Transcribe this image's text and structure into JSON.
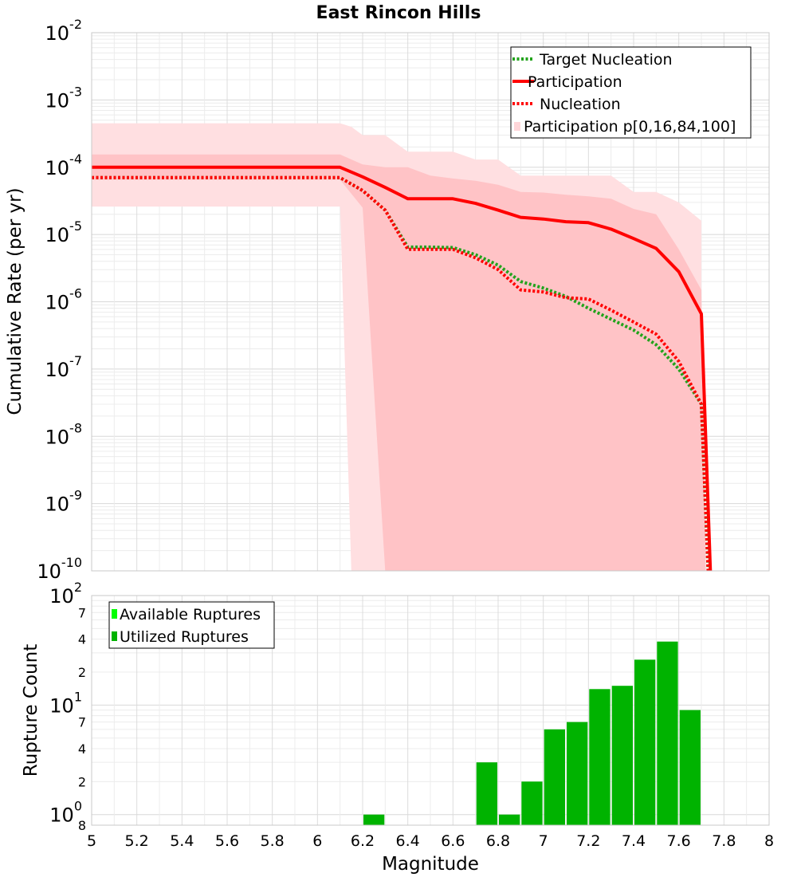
{
  "chart_data": [
    {
      "type": "line",
      "title": "East Rincon Hills",
      "xlabel": "",
      "ylabel": "Cumulative Rate (per yr)",
      "xlim": [
        5,
        8
      ],
      "ylim": [
        1e-10,
        0.01
      ],
      "yscale": "log",
      "grid": true,
      "legend_position": "top-right",
      "y_ticks": [
        {
          "base": "10",
          "exp": "-2"
        },
        {
          "base": "10",
          "exp": "-3"
        },
        {
          "base": "10",
          "exp": "-4"
        },
        {
          "base": "10",
          "exp": "-5"
        },
        {
          "base": "10",
          "exp": "-6"
        },
        {
          "base": "10",
          "exp": "-7"
        },
        {
          "base": "10",
          "exp": "-8"
        },
        {
          "base": "10",
          "exp": "-9"
        },
        {
          "base": "10",
          "exp": "-10"
        }
      ],
      "legend": [
        {
          "label": "Target Nucleation",
          "color": "#22a31c",
          "style": "dotted"
        },
        {
          "label": "Participation",
          "color": "#ff0000",
          "style": "solid"
        },
        {
          "label": "Nucleation",
          "color": "#ff0000",
          "style": "dotted"
        },
        {
          "label": "Participation p[0,16,84,100]",
          "color": "#ffd6d9",
          "style": "band"
        }
      ],
      "series": [
        {
          "name": "Target Nucleation",
          "color": "#22a31c",
          "x": [
            5,
            6.1,
            6.2,
            6.3,
            6.4,
            6.5,
            6.6,
            6.7,
            6.8,
            6.9,
            7.0,
            7.1,
            7.2,
            7.3,
            7.4,
            7.5,
            7.6,
            7.7,
            7.73
          ],
          "y": [
            7e-05,
            7e-05,
            4.5e-05,
            2.3e-05,
            6.5e-06,
            6.5e-06,
            6.4e-06,
            5e-06,
            3.5e-06,
            2e-06,
            1.6e-06,
            1.2e-06,
            8e-07,
            5.5e-07,
            3.8e-07,
            2.3e-07,
            1e-07,
            3e-08,
            1e-10
          ]
        },
        {
          "name": "Participation",
          "color": "#ff0000",
          "x": [
            5,
            6.1,
            6.2,
            6.3,
            6.4,
            6.5,
            6.6,
            6.7,
            6.8,
            6.9,
            7.0,
            7.1,
            7.2,
            7.3,
            7.4,
            7.5,
            7.6,
            7.7,
            7.74
          ],
          "y": [
            0.0001,
            0.0001,
            7.2e-05,
            5e-05,
            3.4e-05,
            3.4e-05,
            3.4e-05,
            2.9e-05,
            2.3e-05,
            1.8e-05,
            1.7e-05,
            1.55e-05,
            1.5e-05,
            1.2e-05,
            8.7e-06,
            6.2e-06,
            2.8e-06,
            6.6e-07,
            1e-10
          ]
        },
        {
          "name": "Nucleation",
          "color": "#ff0000",
          "x": [
            5,
            6.1,
            6.2,
            6.3,
            6.4,
            6.5,
            6.6,
            6.7,
            6.8,
            6.9,
            7.0,
            7.1,
            7.2,
            7.3,
            7.4,
            7.5,
            7.6,
            7.7,
            7.73
          ],
          "y": [
            7e-05,
            7e-05,
            4.5e-05,
            2.3e-05,
            6e-06,
            6e-06,
            6e-06,
            4.5e-06,
            3e-06,
            1.5e-06,
            1.4e-06,
            1.15e-06,
            1.1e-06,
            7.5e-07,
            5e-07,
            3.3e-07,
            1.3e-07,
            3e-08,
            1e-10
          ]
        }
      ],
      "bands": [
        {
          "name": "p0-p100",
          "color": "#ffdfe1",
          "x": [
            5,
            6.1,
            6.15,
            6.2,
            6.3,
            6.4,
            6.5,
            6.6,
            6.7,
            6.8,
            6.9,
            7.0,
            7.1,
            7.2,
            7.3,
            7.4,
            7.5,
            7.6,
            7.7,
            7.7
          ],
          "upper": [
            0.00045,
            0.00045,
            0.0004,
            0.0003,
            0.0003,
            0.00017,
            0.00017,
            0.00017,
            0.00013,
            0.00013,
            7.5e-05,
            7.5e-05,
            7.5e-05,
            7.5e-05,
            7.5e-05,
            4.3e-05,
            4.3e-05,
            3e-05,
            1.6e-05,
            1.6e-05
          ],
          "lower": [
            2.6e-05,
            2.6e-05,
            1e-10,
            1e-10,
            1e-10,
            1e-10,
            1e-10,
            1e-10,
            1e-10,
            1e-10,
            1e-10,
            1e-10,
            1e-10,
            1e-10,
            1e-10,
            1e-10,
            1e-10,
            1e-10,
            1e-10,
            1e-10
          ]
        },
        {
          "name": "p16-p84",
          "color": "#ffc3c6",
          "x": [
            5,
            6.1,
            6.2,
            6.3,
            6.4,
            6.5,
            6.6,
            6.7,
            6.8,
            6.9,
            7.0,
            7.1,
            7.2,
            7.3,
            7.4,
            7.5,
            7.6,
            7.7,
            7.72
          ],
          "upper": [
            0.000155,
            0.000155,
            0.00011,
            0.0001,
            0.0001,
            7.5e-05,
            6.8e-05,
            6.3e-05,
            5.5e-05,
            4.3e-05,
            4.2e-05,
            3.9e-05,
            3.7e-05,
            3.4e-05,
            2.4e-05,
            2e-05,
            6e-06,
            1.5e-06,
            1e-10
          ],
          "lower": [
            6.5e-05,
            6.5e-05,
            2.5e-05,
            1e-10,
            1e-10,
            1e-10,
            1e-10,
            1e-10,
            1e-10,
            1e-10,
            1e-10,
            1e-10,
            1e-10,
            1e-10,
            1e-10,
            1e-10,
            1e-10,
            1e-10,
            1e-10
          ]
        }
      ]
    },
    {
      "type": "bar",
      "title": "",
      "xlabel": "Magnitude",
      "ylabel": "Rupture Count",
      "xlim": [
        5,
        8
      ],
      "ylim": [
        0.8,
        100
      ],
      "yscale": "log",
      "grid": true,
      "legend_position": "top-left",
      "x_tick_labels": [
        "5",
        "5.2",
        "5.4",
        "5.6",
        "5.8",
        "6",
        "6.2",
        "6.4",
        "6.6",
        "6.8",
        "7",
        "7.2",
        "7.4",
        "7.6",
        "7.8",
        "8"
      ],
      "y_ticks": [
        {
          "base": "10",
          "exp": "2",
          "value": 100
        },
        {
          "base": "10",
          "exp": "1",
          "value": 10
        },
        {
          "base": "10",
          "exp": "0",
          "value": 1
        }
      ],
      "y_minor_labels": [
        {
          "label": "7",
          "value": 70
        },
        {
          "label": "4",
          "value": 40
        },
        {
          "label": "2",
          "value": 20
        },
        {
          "label": "7",
          "value": 7
        },
        {
          "label": "4",
          "value": 4
        },
        {
          "label": "2",
          "value": 2
        },
        {
          "label": "8",
          "value": 0.8
        }
      ],
      "legend": [
        {
          "label": "Available Ruptures",
          "color": "#00ff00"
        },
        {
          "label": "Utilized Ruptures",
          "color": "#00b300"
        }
      ],
      "bar_width": 0.1,
      "series": [
        {
          "name": "Utilized Ruptures",
          "color": "#00b300",
          "x": [
            6.25,
            6.75,
            6.85,
            6.95,
            7.05,
            7.15,
            7.25,
            7.35,
            7.45,
            7.55,
            7.65
          ],
          "values": [
            1,
            3,
            1,
            2,
            6,
            7,
            14,
            15,
            26,
            38,
            9
          ]
        }
      ]
    }
  ]
}
